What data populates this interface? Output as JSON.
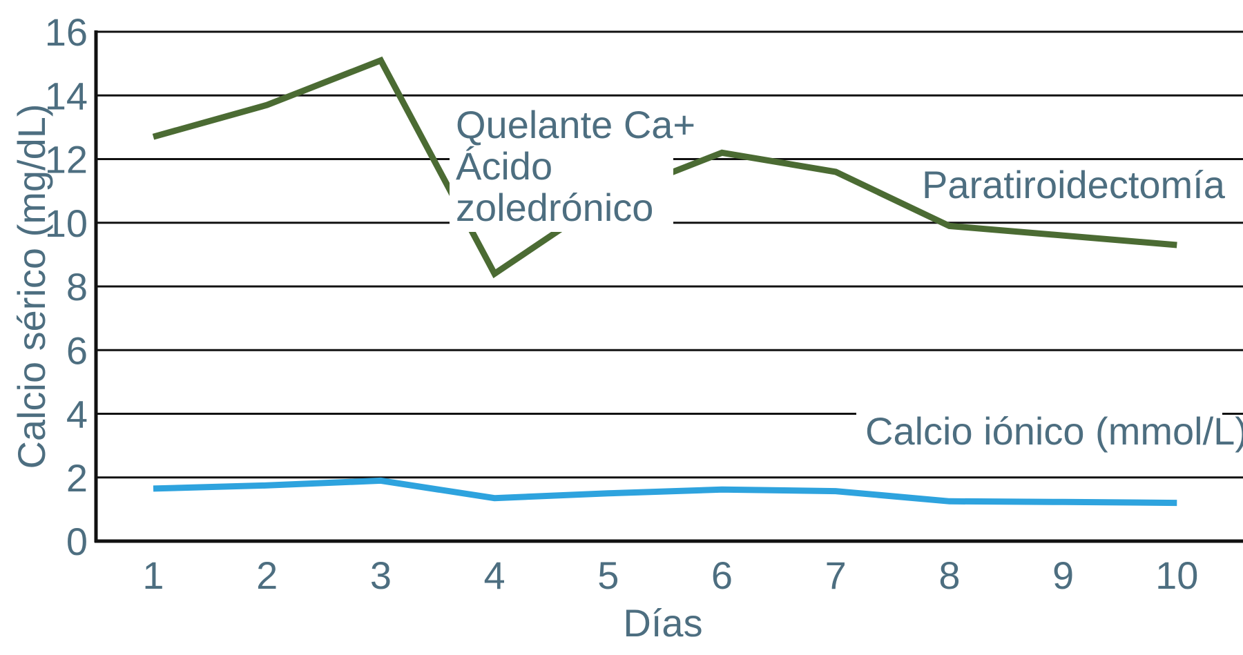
{
  "chart_data": {
    "type": "line",
    "xlabel": "Días",
    "ylabel": "Calcio sérico (mg/dL)",
    "x": [
      1,
      2,
      3,
      4,
      5,
      6,
      7,
      8,
      9,
      10
    ],
    "xticks": [
      "1",
      "2",
      "3",
      "4",
      "5",
      "6",
      "7",
      "8",
      "9",
      "10"
    ],
    "ylim": [
      0,
      16
    ],
    "yticks": [
      "0",
      "2",
      "4",
      "6",
      "8",
      "10",
      "12",
      "14",
      "16"
    ],
    "grid": true,
    "series": [
      {
        "values": [
          12.7,
          13.7,
          15.1,
          8.4,
          10.8,
          12.2,
          11.6,
          9.9,
          9.6,
          9.3
        ],
        "color": "#4b6b33"
      },
      {
        "values": [
          1.65,
          1.75,
          1.9,
          1.35,
          1.5,
          1.62,
          1.57,
          1.25,
          1.23,
          1.2
        ],
        "color": "#2ea3de"
      }
    ],
    "annotations": [
      {
        "lines": [
          "Quelante Ca+",
          "Ácido",
          "zoledrónico"
        ]
      },
      {
        "lines": [
          "Paratiroidectomía"
        ]
      },
      {
        "lines": [
          "Calcio iónico (mmol/L)"
        ]
      }
    ],
    "text_color": "#4d6e80",
    "axis_color": "#111111"
  }
}
